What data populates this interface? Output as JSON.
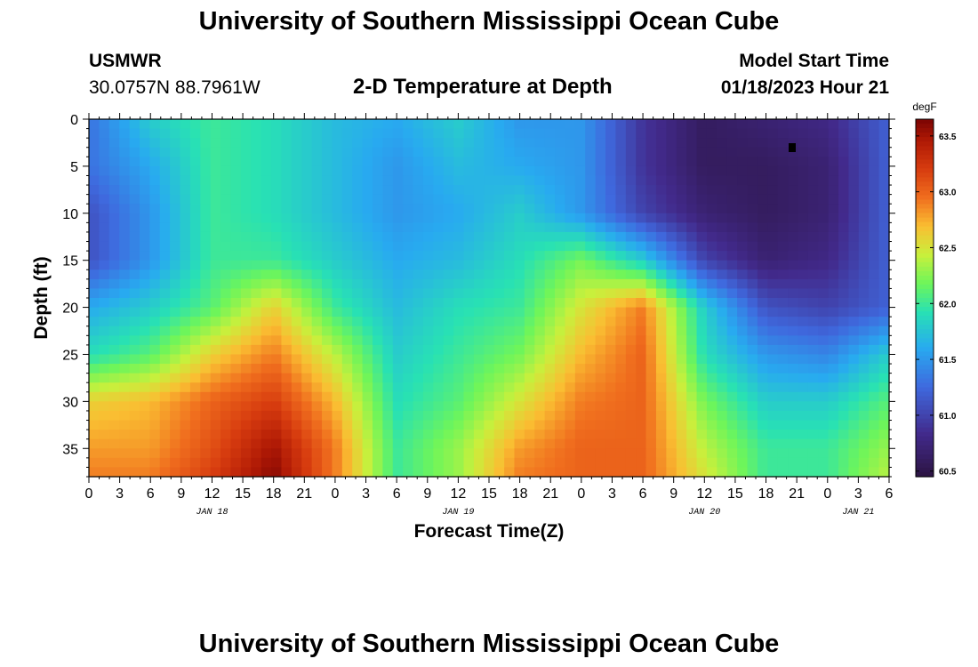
{
  "header": {
    "title": "University of Southern Mississippi Ocean Cube",
    "station": "USMWR",
    "coordinates": "30.0757N  88.7961W",
    "model_start_label": "Model Start Time",
    "model_start_value": "01/18/2023 Hour 21"
  },
  "footer": {
    "title": "University of Southern Mississippi Ocean Cube"
  },
  "chart_data": {
    "type": "heatmap",
    "title": "2-D Temperature at Depth",
    "xlabel": "Forecast Time(Z)",
    "ylabel": "Depth (ft)",
    "x_range_hours": [
      0,
      78
    ],
    "ylim": [
      0,
      38
    ],
    "y_inverted": true,
    "x_tick_labels": [
      "0",
      "3",
      "6",
      "9",
      "12",
      "15",
      "18",
      "21",
      "0",
      "3",
      "6",
      "9",
      "12",
      "15",
      "18",
      "21",
      "0",
      "3",
      "6",
      "9",
      "12",
      "15",
      "18",
      "21",
      "0",
      "3",
      "6"
    ],
    "x_tick_hours": [
      0,
      3,
      6,
      9,
      12,
      15,
      18,
      21,
      24,
      27,
      30,
      33,
      36,
      39,
      42,
      45,
      48,
      51,
      54,
      57,
      60,
      63,
      66,
      69,
      72,
      75,
      78
    ],
    "y_tick_labels": [
      "0",
      "5",
      "10",
      "15",
      "20",
      "25",
      "30",
      "35"
    ],
    "y_tick_values": [
      0,
      5,
      10,
      15,
      20,
      25,
      30,
      35
    ],
    "date_labels": [
      {
        "label": "JAN 18",
        "hour": 12
      },
      {
        "label": "JAN 19",
        "hour": 36
      },
      {
        "label": "JAN 20",
        "hour": 60
      },
      {
        "label": "JAN 21",
        "hour": 75
      }
    ],
    "colorbar": {
      "units": "degF",
      "min": 60.45,
      "max": 63.65,
      "tick_labels": [
        "60.5",
        "61.0",
        "61.5",
        "62.0",
        "62.5",
        "63.0",
        "63.5"
      ],
      "tick_values": [
        60.5,
        61.0,
        61.5,
        62.0,
        62.5,
        63.0,
        63.5
      ]
    },
    "grid_hours": [
      0,
      6,
      12,
      18,
      24,
      30,
      36,
      42,
      48,
      54,
      60,
      66,
      72,
      78
    ],
    "grid_depths_ft": [
      0,
      5,
      10,
      15,
      20,
      25,
      30,
      35,
      38
    ],
    "temperature_degF": [
      [
        61.3,
        61.8,
        62.0,
        61.9,
        61.7,
        61.6,
        61.8,
        61.5,
        61.5,
        60.9,
        60.6,
        60.7,
        60.8,
        61.2
      ],
      [
        61.3,
        61.6,
        62.0,
        61.9,
        61.7,
        61.5,
        61.7,
        61.6,
        61.5,
        60.9,
        60.6,
        60.6,
        60.7,
        61.2
      ],
      [
        61.1,
        61.5,
        62.0,
        61.9,
        61.7,
        61.5,
        61.6,
        61.8,
        61.5,
        61.0,
        60.7,
        60.6,
        60.7,
        61.2
      ],
      [
        61.1,
        61.5,
        62.0,
        62.0,
        61.8,
        61.6,
        61.7,
        61.9,
        62.2,
        61.8,
        61.0,
        60.7,
        60.8,
        61.2
      ],
      [
        61.6,
        61.8,
        62.1,
        62.6,
        62.0,
        61.7,
        61.9,
        62.0,
        62.5,
        62.9,
        61.8,
        61.1,
        61.0,
        61.2
      ],
      [
        61.9,
        62.1,
        62.6,
        62.9,
        62.4,
        61.8,
        62.0,
        62.2,
        62.7,
        63.0,
        61.9,
        61.5,
        61.4,
        61.8
      ],
      [
        62.6,
        62.7,
        63.0,
        63.2,
        62.7,
        61.9,
        62.1,
        62.5,
        62.9,
        63.0,
        62.2,
        61.8,
        61.8,
        62.1
      ],
      [
        62.8,
        62.8,
        63.1,
        63.5,
        62.9,
        62.0,
        62.3,
        62.8,
        63.0,
        63.0,
        62.4,
        62.0,
        62.0,
        62.3
      ],
      [
        62.9,
        62.9,
        63.2,
        63.6,
        62.9,
        62.0,
        62.3,
        62.9,
        63.0,
        63.0,
        62.5,
        62.0,
        62.0,
        62.4
      ]
    ]
  }
}
